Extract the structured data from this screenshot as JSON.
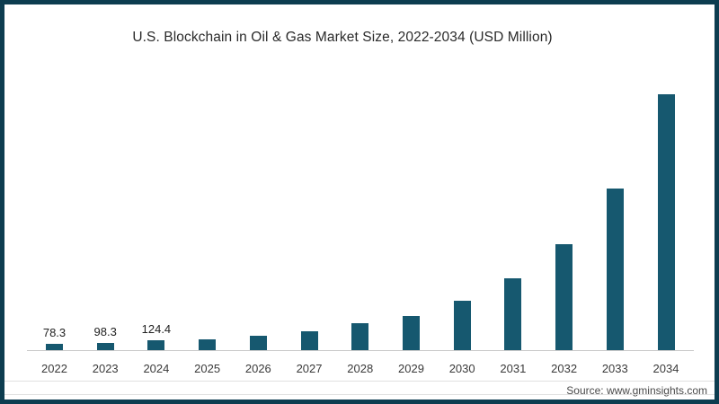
{
  "chart_data": {
    "type": "bar",
    "title": "U.S. Blockchain in Oil & Gas Market Size, 2022-2034 (USD Million)",
    "categories": [
      "2022",
      "2023",
      "2024",
      "2025",
      "2026",
      "2027",
      "2028",
      "2029",
      "2030",
      "2031",
      "2032",
      "2033",
      "2034"
    ],
    "values": [
      78.3,
      98.3,
      124.4,
      145,
      195,
      250,
      360,
      455,
      650,
      945,
      1400,
      2130,
      3370
    ],
    "value_labels": [
      "78.3",
      "98.3",
      "124.4",
      "",
      "",
      "",
      "",
      "",
      "",
      "",
      "",
      "",
      ""
    ],
    "xlabel": "",
    "ylabel": "",
    "ylim": [
      0,
      3400
    ],
    "grid": false,
    "legend": false,
    "bar_color": "#16586f",
    "source": "Source: www.gminsights.com"
  },
  "colors": {
    "frame_border": "#0d3d50",
    "bar": "#16586f",
    "axis_line": "#c9c9c9",
    "divider": "#e0e0e0",
    "title_text": "#2a2a2a",
    "label_text": "#3a3a3a",
    "source_text": "#4a4a4a"
  }
}
